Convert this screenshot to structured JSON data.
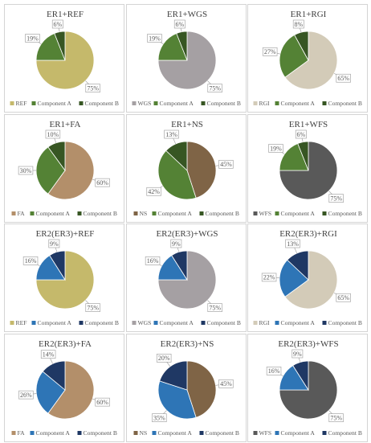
{
  "chart_data": [
    {
      "type": "pie",
      "title": "ER1+REF",
      "categories": [
        "REF",
        "Component A",
        "Component B"
      ],
      "values": [
        75,
        19,
        6
      ],
      "labels": [
        "75%",
        "19%",
        "6%"
      ],
      "colors": [
        "#c5b96b",
        "#548235",
        "#375623"
      ],
      "legend": "bottom"
    },
    {
      "type": "pie",
      "title": "ER1+WGS",
      "categories": [
        "WGS",
        "Component A",
        "Component B"
      ],
      "values": [
        75,
        19,
        6
      ],
      "labels": [
        "75%",
        "19%",
        "6%"
      ],
      "colors": [
        "#a5a0a3",
        "#548235",
        "#375623"
      ],
      "legend": "bottom"
    },
    {
      "type": "pie",
      "title": "ER1+RGI",
      "categories": [
        "RGI",
        "Component A",
        "Component B"
      ],
      "values": [
        65,
        27,
        8
      ],
      "labels": [
        "65%",
        "27%",
        "8%"
      ],
      "colors": [
        "#d3cbb8",
        "#548235",
        "#375623"
      ],
      "legend": "bottom"
    },
    {
      "type": "pie",
      "title": "ER1+FA",
      "categories": [
        "FA",
        "Component A",
        "Component B"
      ],
      "values": [
        60,
        30,
        10
      ],
      "labels": [
        "60%",
        "30%",
        "10%"
      ],
      "colors": [
        "#b38f6a",
        "#548235",
        "#375623"
      ],
      "legend": "bottom"
    },
    {
      "type": "pie",
      "title": "ER1+NS",
      "categories": [
        "NS",
        "Component A",
        "Component B"
      ],
      "values": [
        45,
        42,
        13
      ],
      "labels": [
        "45%",
        "42%",
        "13%"
      ],
      "colors": [
        "#7f6446",
        "#548235",
        "#375623"
      ],
      "legend": "bottom"
    },
    {
      "type": "pie",
      "title": "ER1+WFS",
      "categories": [
        "WFS",
        "Component A",
        "Component B"
      ],
      "values": [
        75,
        19,
        6
      ],
      "labels": [
        "75%",
        "19%",
        "6%"
      ],
      "colors": [
        "#595959",
        "#548235",
        "#375623"
      ],
      "legend": "bottom"
    },
    {
      "type": "pie",
      "title": "ER2(ER3)+REF",
      "categories": [
        "REF",
        "Component A",
        "Component B"
      ],
      "values": [
        75,
        16,
        9
      ],
      "labels": [
        "75%",
        "16%",
        "9%"
      ],
      "colors": [
        "#c5b96b",
        "#2e75b6",
        "#1f3864"
      ],
      "legend": "bottom"
    },
    {
      "type": "pie",
      "title": "ER2(ER3)+WGS",
      "categories": [
        "WGS",
        "Component A",
        "Component B"
      ],
      "values": [
        75,
        16,
        9
      ],
      "labels": [
        "75%",
        "16%",
        "9%"
      ],
      "colors": [
        "#a5a0a3",
        "#2e75b6",
        "#1f3864"
      ],
      "legend": "bottom"
    },
    {
      "type": "pie",
      "title": "ER2(ER3)+RGI",
      "categories": [
        "RGI",
        "Component A",
        "Component B"
      ],
      "values": [
        65,
        22,
        13
      ],
      "labels": [
        "65%",
        "22%",
        "13%"
      ],
      "colors": [
        "#d3cbb8",
        "#2e75b6",
        "#1f3864"
      ],
      "legend": "bottom"
    },
    {
      "type": "pie",
      "title": "ER2(ER3)+FA",
      "categories": [
        "FA",
        "Component A",
        "Component B"
      ],
      "values": [
        60,
        26,
        14
      ],
      "labels": [
        "60%",
        "26%",
        "14%"
      ],
      "colors": [
        "#b38f6a",
        "#2e75b6",
        "#1f3864"
      ],
      "legend": "bottom"
    },
    {
      "type": "pie",
      "title": "ER2(ER3)+NS",
      "categories": [
        "NS",
        "Component A",
        "Component B"
      ],
      "values": [
        45,
        35,
        20
      ],
      "labels": [
        "45%",
        "35%",
        "20%"
      ],
      "colors": [
        "#7f6446",
        "#2e75b6",
        "#1f3864"
      ],
      "legend": "bottom"
    },
    {
      "type": "pie",
      "title": "ER2(ER3)+WFS",
      "categories": [
        "WFS",
        "Component A",
        "Component B"
      ],
      "values": [
        75,
        16,
        9
      ],
      "labels": [
        "75%",
        "16%",
        "9%"
      ],
      "colors": [
        "#595959",
        "#2e75b6",
        "#1f3864"
      ],
      "legend": "bottom"
    }
  ]
}
